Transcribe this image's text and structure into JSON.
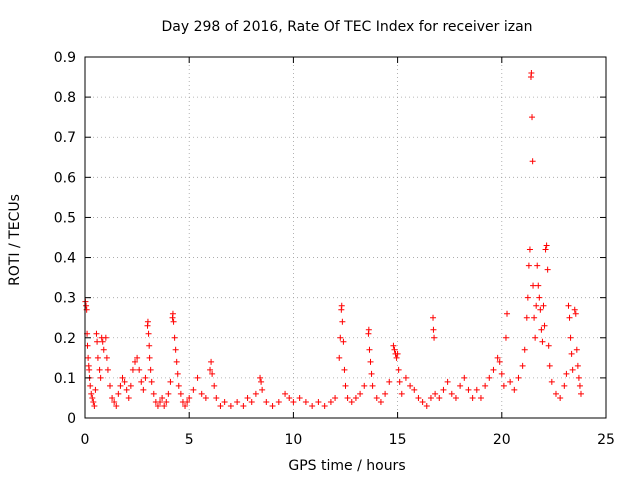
{
  "chart_data": {
    "type": "scatter",
    "title": "Day 298 of 2016, Rate Of TEC Index for receiver izan",
    "xlabel": "GPS time / hours",
    "ylabel": "ROTI / TECUs",
    "xlim": [
      0,
      25
    ],
    "ylim": [
      0,
      0.9
    ],
    "x_ticks": [
      0,
      5,
      10,
      15,
      20,
      25
    ],
    "x_tick_labels": [
      "0",
      "5",
      "10",
      "15",
      "20",
      "25"
    ],
    "y_ticks": [
      0,
      0.1,
      0.2,
      0.3,
      0.4,
      0.5,
      0.6,
      0.7,
      0.8,
      0.9
    ],
    "y_tick_labels": [
      "0",
      "0.1",
      "0.2",
      "0.3",
      "0.4",
      "0.5",
      "0.6",
      "0.7",
      "0.8",
      "0.9"
    ],
    "grid": true,
    "marker": "plus",
    "color": "#ff0000",
    "series": [
      {
        "name": "ROTI",
        "points": [
          [
            0.02,
            0.29
          ],
          [
            0.05,
            0.28
          ],
          [
            0.08,
            0.27
          ],
          [
            0.1,
            0.21
          ],
          [
            0.12,
            0.18
          ],
          [
            0.15,
            0.15
          ],
          [
            0.18,
            0.13
          ],
          [
            0.2,
            0.12
          ],
          [
            0.22,
            0.1
          ],
          [
            0.25,
            0.08
          ],
          [
            0.3,
            0.06
          ],
          [
            0.35,
            0.05
          ],
          [
            0.4,
            0.04
          ],
          [
            0.45,
            0.03
          ],
          [
            0.5,
            0.07
          ],
          [
            0.55,
            0.21
          ],
          [
            0.58,
            0.19
          ],
          [
            0.62,
            0.15
          ],
          [
            0.7,
            0.12
          ],
          [
            0.75,
            0.1
          ],
          [
            0.8,
            0.2
          ],
          [
            0.85,
            0.19
          ],
          [
            0.9,
            0.17
          ],
          [
            1.0,
            0.2
          ],
          [
            1.05,
            0.15
          ],
          [
            1.1,
            0.12
          ],
          [
            1.2,
            0.08
          ],
          [
            1.3,
            0.05
          ],
          [
            1.4,
            0.04
          ],
          [
            1.5,
            0.03
          ],
          [
            1.6,
            0.06
          ],
          [
            1.7,
            0.08
          ],
          [
            1.8,
            0.1
          ],
          [
            1.9,
            0.09
          ],
          [
            2.0,
            0.07
          ],
          [
            2.1,
            0.05
          ],
          [
            2.2,
            0.08
          ],
          [
            2.3,
            0.12
          ],
          [
            2.4,
            0.14
          ],
          [
            2.5,
            0.15
          ],
          [
            2.6,
            0.12
          ],
          [
            2.7,
            0.09
          ],
          [
            2.8,
            0.07
          ],
          [
            2.9,
            0.1
          ],
          [
            3.0,
            0.23
          ],
          [
            3.02,
            0.24
          ],
          [
            3.05,
            0.21
          ],
          [
            3.08,
            0.18
          ],
          [
            3.1,
            0.15
          ],
          [
            3.15,
            0.12
          ],
          [
            3.2,
            0.09
          ],
          [
            3.3,
            0.06
          ],
          [
            3.4,
            0.04
          ],
          [
            3.5,
            0.03
          ],
          [
            3.6,
            0.04
          ],
          [
            3.7,
            0.05
          ],
          [
            3.8,
            0.03
          ],
          [
            3.9,
            0.04
          ],
          [
            4.0,
            0.06
          ],
          [
            4.1,
            0.09
          ],
          [
            4.2,
            0.25
          ],
          [
            4.22,
            0.26
          ],
          [
            4.25,
            0.24
          ],
          [
            4.3,
            0.2
          ],
          [
            4.35,
            0.17
          ],
          [
            4.4,
            0.14
          ],
          [
            4.45,
            0.11
          ],
          [
            4.5,
            0.08
          ],
          [
            4.6,
            0.06
          ],
          [
            4.7,
            0.04
          ],
          [
            4.8,
            0.03
          ],
          [
            4.9,
            0.04
          ],
          [
            5.0,
            0.05
          ],
          [
            5.2,
            0.07
          ],
          [
            5.4,
            0.1
          ],
          [
            5.6,
            0.06
          ],
          [
            5.8,
            0.05
          ],
          [
            6.0,
            0.12
          ],
          [
            6.05,
            0.14
          ],
          [
            6.1,
            0.11
          ],
          [
            6.2,
            0.08
          ],
          [
            6.3,
            0.05
          ],
          [
            6.5,
            0.03
          ],
          [
            6.7,
            0.04
          ],
          [
            7.0,
            0.03
          ],
          [
            7.3,
            0.04
          ],
          [
            7.6,
            0.03
          ],
          [
            7.8,
            0.05
          ],
          [
            8.0,
            0.04
          ],
          [
            8.2,
            0.06
          ],
          [
            8.4,
            0.1
          ],
          [
            8.45,
            0.09
          ],
          [
            8.5,
            0.07
          ],
          [
            8.7,
            0.04
          ],
          [
            9.0,
            0.03
          ],
          [
            9.3,
            0.04
          ],
          [
            9.6,
            0.06
          ],
          [
            9.8,
            0.05
          ],
          [
            10.0,
            0.04
          ],
          [
            10.3,
            0.05
          ],
          [
            10.6,
            0.04
          ],
          [
            10.9,
            0.03
          ],
          [
            11.2,
            0.04
          ],
          [
            11.5,
            0.03
          ],
          [
            11.8,
            0.04
          ],
          [
            12.0,
            0.05
          ],
          [
            12.2,
            0.15
          ],
          [
            12.25,
            0.2
          ],
          [
            12.3,
            0.27
          ],
          [
            12.32,
            0.28
          ],
          [
            12.35,
            0.24
          ],
          [
            12.4,
            0.19
          ],
          [
            12.45,
            0.12
          ],
          [
            12.5,
            0.08
          ],
          [
            12.6,
            0.05
          ],
          [
            12.8,
            0.04
          ],
          [
            13.0,
            0.05
          ],
          [
            13.2,
            0.06
          ],
          [
            13.4,
            0.08
          ],
          [
            13.6,
            0.21
          ],
          [
            13.62,
            0.22
          ],
          [
            13.65,
            0.17
          ],
          [
            13.7,
            0.14
          ],
          [
            13.75,
            0.11
          ],
          [
            13.8,
            0.08
          ],
          [
            14.0,
            0.05
          ],
          [
            14.2,
            0.04
          ],
          [
            14.4,
            0.06
          ],
          [
            14.6,
            0.09
          ],
          [
            14.8,
            0.18
          ],
          [
            14.85,
            0.17
          ],
          [
            14.9,
            0.16
          ],
          [
            14.95,
            0.15
          ],
          [
            15.0,
            0.16
          ],
          [
            15.05,
            0.12
          ],
          [
            15.1,
            0.09
          ],
          [
            15.2,
            0.06
          ],
          [
            15.4,
            0.1
          ],
          [
            15.6,
            0.08
          ],
          [
            15.8,
            0.07
          ],
          [
            16.0,
            0.05
          ],
          [
            16.2,
            0.04
          ],
          [
            16.4,
            0.03
          ],
          [
            16.6,
            0.05
          ],
          [
            16.7,
            0.25
          ],
          [
            16.72,
            0.22
          ],
          [
            16.75,
            0.2
          ],
          [
            16.8,
            0.06
          ],
          [
            17.0,
            0.05
          ],
          [
            17.2,
            0.07
          ],
          [
            17.4,
            0.09
          ],
          [
            17.6,
            0.06
          ],
          [
            17.8,
            0.05
          ],
          [
            18.0,
            0.08
          ],
          [
            18.2,
            0.1
          ],
          [
            18.4,
            0.07
          ],
          [
            18.6,
            0.05
          ],
          [
            18.8,
            0.07
          ],
          [
            19.0,
            0.05
          ],
          [
            19.2,
            0.08
          ],
          [
            19.4,
            0.1
          ],
          [
            19.6,
            0.12
          ],
          [
            19.8,
            0.15
          ],
          [
            19.9,
            0.14
          ],
          [
            20.0,
            0.11
          ],
          [
            20.1,
            0.08
          ],
          [
            20.2,
            0.2
          ],
          [
            20.25,
            0.26
          ],
          [
            20.4,
            0.09
          ],
          [
            20.6,
            0.07
          ],
          [
            20.8,
            0.1
          ],
          [
            21.0,
            0.13
          ],
          [
            21.1,
            0.17
          ],
          [
            21.2,
            0.25
          ],
          [
            21.25,
            0.3
          ],
          [
            21.3,
            0.38
          ],
          [
            21.35,
            0.42
          ],
          [
            21.4,
            0.85
          ],
          [
            21.42,
            0.86
          ],
          [
            21.45,
            0.75
          ],
          [
            21.48,
            0.64
          ],
          [
            21.5,
            0.33
          ],
          [
            21.55,
            0.25
          ],
          [
            21.6,
            0.2
          ],
          [
            21.65,
            0.28
          ],
          [
            21.7,
            0.38
          ],
          [
            21.75,
            0.33
          ],
          [
            21.8,
            0.3
          ],
          [
            21.85,
            0.27
          ],
          [
            21.9,
            0.22
          ],
          [
            21.95,
            0.19
          ],
          [
            22.0,
            0.28
          ],
          [
            22.05,
            0.23
          ],
          [
            22.1,
            0.42
          ],
          [
            22.15,
            0.43
          ],
          [
            22.2,
            0.37
          ],
          [
            22.25,
            0.18
          ],
          [
            22.3,
            0.13
          ],
          [
            22.4,
            0.09
          ],
          [
            22.6,
            0.06
          ],
          [
            22.8,
            0.05
          ],
          [
            23.0,
            0.08
          ],
          [
            23.1,
            0.11
          ],
          [
            23.2,
            0.28
          ],
          [
            23.25,
            0.25
          ],
          [
            23.3,
            0.2
          ],
          [
            23.35,
            0.16
          ],
          [
            23.4,
            0.12
          ],
          [
            23.5,
            0.27
          ],
          [
            23.55,
            0.26
          ],
          [
            23.6,
            0.17
          ],
          [
            23.65,
            0.13
          ],
          [
            23.7,
            0.1
          ],
          [
            23.75,
            0.08
          ],
          [
            23.8,
            0.06
          ]
        ]
      }
    ]
  }
}
